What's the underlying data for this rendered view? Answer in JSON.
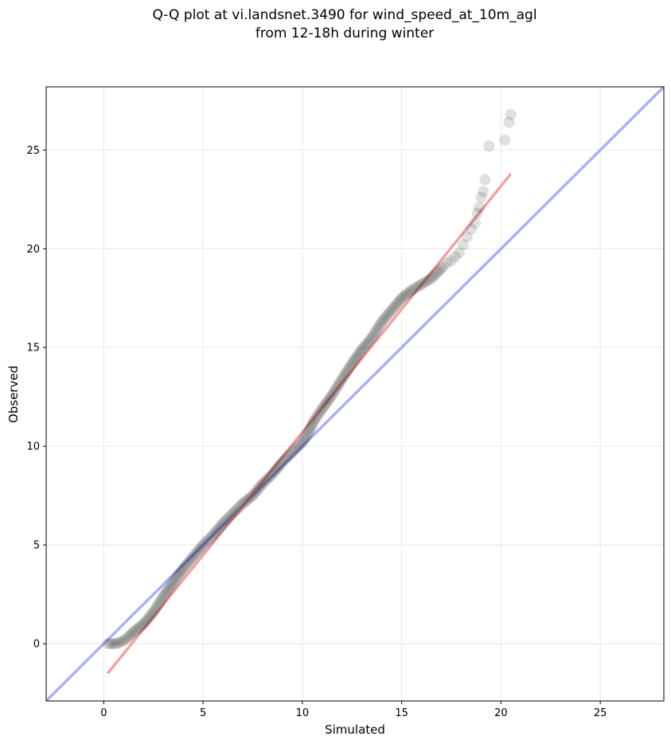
{
  "chart_data": {
    "type": "scatter",
    "title_line1": "Q-Q plot at vi.landsnet.3490 for wind_speed_at_10m_agl",
    "title_line2": "from 12-18h during winter",
    "xlabel": "Simulated",
    "ylabel": "Observed",
    "xlim": [
      -2.9,
      28.2
    ],
    "ylim": [
      -2.9,
      28.2
    ],
    "xticks": [
      0,
      5,
      10,
      15,
      20,
      25
    ],
    "yticks": [
      0,
      5,
      10,
      15,
      20,
      25
    ],
    "grid": true,
    "colors": {
      "points": "#000000",
      "identity_line": "#aab0f4",
      "fit_line": "#f2a3a3",
      "grid": "#ebebeb"
    },
    "identity_line": {
      "x": [
        -2.9,
        28.2
      ],
      "y": [
        -2.9,
        28.2
      ]
    },
    "fit_line": {
      "x": [
        0.2,
        20.5
      ],
      "y": [
        -1.5,
        23.8
      ]
    },
    "quantile_curve": {
      "x": [
        0.2,
        0.4,
        0.6,
        0.9,
        1.2,
        1.5,
        2.0,
        2.5,
        3.0,
        3.5,
        4.0,
        4.5,
        5.0,
        5.5,
        6.0,
        6.5,
        7.0,
        7.5,
        8.0,
        8.5,
        9.0,
        9.5,
        10.0,
        10.3,
        10.6,
        11.0,
        11.5,
        12.0,
        12.5,
        13.0,
        13.5,
        14.0,
        14.5,
        15.0,
        15.5,
        16.0,
        16.5,
        17.0
      ],
      "y": [
        0.0,
        0.0,
        0.0,
        0.1,
        0.3,
        0.6,
        1.0,
        1.6,
        2.4,
        3.1,
        3.8,
        4.4,
        5.0,
        5.5,
        6.1,
        6.6,
        7.1,
        7.5,
        8.1,
        8.6,
        9.2,
        9.7,
        10.2,
        10.7,
        11.3,
        11.9,
        12.6,
        13.4,
        14.2,
        14.9,
        15.5,
        16.3,
        16.9,
        17.5,
        17.9,
        18.2,
        18.5,
        19.0
      ]
    },
    "tail_points": {
      "x": [
        17.1,
        17.3,
        17.5,
        17.7,
        17.9,
        18.1,
        18.3,
        18.5,
        18.7,
        18.8,
        18.9,
        19.0,
        19.1,
        19.2,
        19.4,
        20.2,
        20.4,
        20.5
      ],
      "y": [
        19.1,
        19.3,
        19.4,
        19.6,
        19.8,
        20.2,
        20.6,
        21.0,
        21.3,
        21.8,
        22.1,
        22.6,
        22.9,
        23.5,
        25.2,
        25.5,
        26.4,
        26.8
      ]
    }
  }
}
